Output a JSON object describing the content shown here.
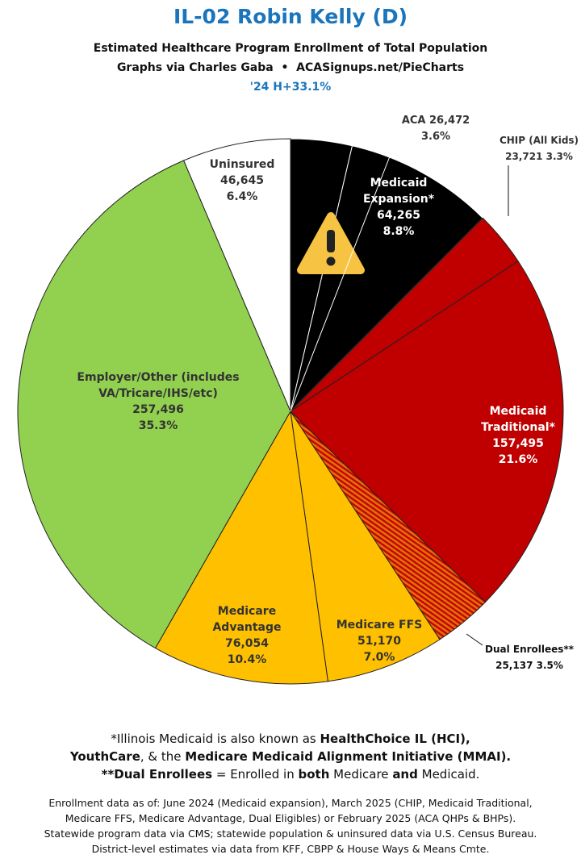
{
  "header": {
    "title": "IL-02 Robin Kelly (D)",
    "subtitle": "Estimated Healthcare Program Enrollment of Total Population",
    "credit": "Graphs via Charles Gaba  •  ACASignups.net/PieCharts",
    "note": "'24 H+33.1%"
  },
  "chart_data": {
    "type": "pie",
    "categories": [
      "ACA",
      "Medicaid Expansion*",
      "CHIP (All Kids)",
      "Medicaid Traditional*",
      "Dual Enrollees**",
      "Medicare FFS",
      "Medicare Advantage",
      "Employer/Other (includes VA/Tricare/IHS/etc)",
      "Uninsured"
    ],
    "values": [
      26472,
      64265,
      23721,
      157495,
      25137,
      51170,
      76054,
      257496,
      46645
    ],
    "value_labels": [
      "26,472",
      "64,265",
      "23,721",
      "157,495",
      "25,137",
      "51,170",
      "76,054",
      "257,496",
      "46,645"
    ],
    "percent_labels": [
      "3.6%",
      "8.8%",
      "3.3%",
      "21.6%",
      "3.5%",
      "7.0%",
      "10.4%",
      "35.3%",
      "6.4%"
    ],
    "colors": [
      "#000000",
      "#000000",
      "#c00000",
      "#c00000",
      "hatch",
      "#ffc000",
      "#ffc000",
      "#92d050",
      "#ffffff"
    ]
  },
  "footnote": [
    [
      {
        "text": "*Illinois Medicaid is also known as "
      },
      {
        "text": "HealthChoice IL (HCI),",
        "bold": true
      }
    ],
    [
      {
        "text": "YouthCare",
        "bold": true
      },
      {
        "text": ", & the "
      },
      {
        "text": "Medicare Medicaid Alignment Initiative (MMAI).",
        "bold": true
      }
    ],
    [
      {
        "text": "**Dual Enrollees",
        "bold": true
      },
      {
        "text": " = Enrolled in "
      },
      {
        "text": "both",
        "bold": true
      },
      {
        "text": " Medicare "
      },
      {
        "text": "and",
        "bold": true
      },
      {
        "text": " Medicaid."
      }
    ]
  ],
  "sources": [
    "Enrollment data as of: June 2024 (Medicaid expansion), March 2025 (CHIP, Medicaid Traditional,",
    "Medicare FFS, Medicare Advantage, Dual Eligibles) or February 2025 (ACA QHPs & BHPs).",
    "Statewide program data via CMS; statewide population & uninsured data via U.S. Census Bureau.",
    "District-level estimates via data from KFF, CBPP & House Ways & Means Cmte."
  ]
}
